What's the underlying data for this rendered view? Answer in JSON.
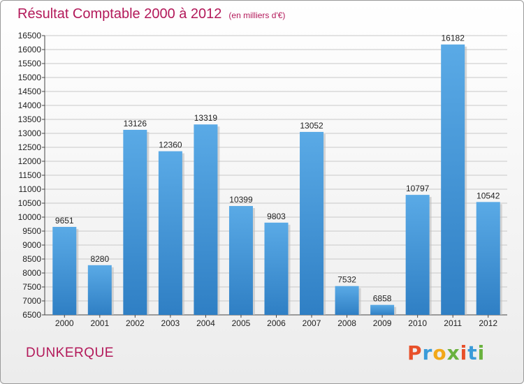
{
  "header": {
    "title": "Résultat Comptable 2000 à 2012",
    "subtitle": "(en milliers d'€)"
  },
  "footer": {
    "city": "DUNKERQUE",
    "logo_text": "Proxiti",
    "logo_colors": [
      "#e8502a",
      "#3a9bd9",
      "#f2a818",
      "#6ab23e",
      "#e8502a",
      "#3a9bd9",
      "#6ab23e"
    ]
  },
  "colors": {
    "bar_light": "#5aaae6",
    "bar_dark": "#2f7fc4",
    "grid": "#c8c8c8",
    "title": "#b3195a"
  },
  "chart_data": {
    "type": "bar",
    "title": "Résultat Comptable 2000 à 2012",
    "subtitle": "(en milliers d'€)",
    "categories": [
      "2000",
      "2001",
      "2002",
      "2003",
      "2004",
      "2005",
      "2006",
      "2007",
      "2008",
      "2009",
      "2010",
      "2011",
      "2012"
    ],
    "values": [
      9651,
      8280,
      13126,
      12360,
      13319,
      10399,
      9803,
      13052,
      7532,
      6858,
      10797,
      16182,
      10542
    ],
    "ylim": [
      6500,
      16500
    ],
    "yticks": [
      6500,
      7000,
      7500,
      8000,
      8500,
      9000,
      9500,
      10000,
      10500,
      11000,
      11500,
      12000,
      12500,
      13000,
      13500,
      14000,
      14500,
      15000,
      15500,
      16000,
      16500
    ],
    "grid": true,
    "legend": "none"
  }
}
